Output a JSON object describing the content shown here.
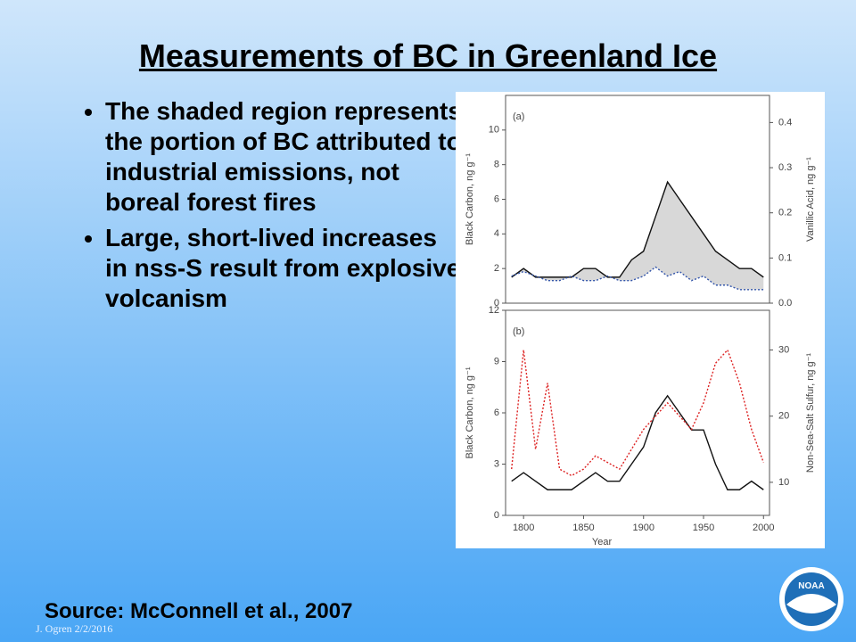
{
  "slide": {
    "title": "Measurements of BC in Greenland Ice",
    "bullets": [
      "The shaded region represents the portion of BC attributed to industrial emissions, not boreal forest fires",
      "Large, short-lived increases in nss-S result from explosive volcanism"
    ],
    "source": "Source:  McConnell et al., 2007",
    "footer": "J. Ogren  2/2/2016",
    "logo": "NOAA"
  },
  "chart_data": [
    {
      "type": "line",
      "panel_label": "(a)",
      "ylabel": "Black Carbon, ng g⁻¹",
      "y2label": "Vanillic Acid, ng g⁻¹",
      "x": [
        1790,
        1800,
        1810,
        1820,
        1830,
        1840,
        1850,
        1860,
        1870,
        1880,
        1890,
        1900,
        1910,
        1920,
        1930,
        1940,
        1950,
        1960,
        1970,
        1980,
        1990,
        2000
      ],
      "xlim": [
        1785,
        2005
      ],
      "ylim": [
        0,
        12
      ],
      "yticks": [
        0,
        2,
        4,
        6,
        8,
        10
      ],
      "y2lim": [
        0,
        0.46
      ],
      "y2ticks": [
        {
          "value": 0,
          "label": "0.0"
        },
        {
          "value": 0.1,
          "label": "0.1"
        },
        {
          "value": 0.2,
          "label": "0.2"
        },
        {
          "value": 0.3,
          "label": "0.3"
        },
        {
          "value": 0.4,
          "label": "0.4"
        }
      ],
      "shaded": true,
      "series": [
        {
          "color": "#111111",
          "values": [
            1.5,
            2,
            1.5,
            1.5,
            1.5,
            1.5,
            2,
            2,
            1.5,
            1.5,
            2.5,
            3,
            5,
            7,
            6,
            5,
            4,
            3,
            2.5,
            2,
            2,
            1.5
          ]
        },
        {
          "color": "#3355aa",
          "axis": "y2",
          "dashed": true,
          "values": [
            0.06,
            0.07,
            0.06,
            0.05,
            0.05,
            0.06,
            0.05,
            0.05,
            0.06,
            0.05,
            0.05,
            0.06,
            0.08,
            0.06,
            0.07,
            0.05,
            0.06,
            0.04,
            0.04,
            0.03,
            0.03,
            0.03
          ]
        }
      ]
    },
    {
      "type": "line",
      "panel_label": "(b)",
      "xlabel": "Year",
      "ylabel": "Black Carbon, ng g⁻¹",
      "y2label": "Non-Sea-Salt Sulfur, ng g⁻¹",
      "x": [
        1790,
        1800,
        1810,
        1820,
        1830,
        1840,
        1850,
        1860,
        1870,
        1880,
        1890,
        1900,
        1910,
        1920,
        1930,
        1940,
        1950,
        1960,
        1970,
        1980,
        1990,
        2000
      ],
      "xlim": [
        1785,
        2005
      ],
      "xticks": [
        1800,
        1850,
        1900,
        1950,
        2000
      ],
      "ylim": [
        0,
        12
      ],
      "yticks": [
        0,
        3,
        6,
        9,
        12
      ],
      "y2lim": [
        5,
        36
      ],
      "y2ticks": [
        10,
        20,
        30
      ],
      "series": [
        {
          "color": "#111111",
          "values": [
            2,
            2.5,
            2,
            1.5,
            1.5,
            1.5,
            2,
            2.5,
            2,
            2,
            3,
            4,
            6,
            7,
            6,
            5,
            5,
            3,
            1.5,
            1.5,
            2,
            1.5
          ]
        },
        {
          "color": "#dd2222",
          "axis": "y2",
          "dashed": true,
          "values": [
            12,
            30,
            15,
            25,
            12,
            11,
            12,
            14,
            13,
            12,
            15,
            18,
            20,
            22,
            20,
            18,
            22,
            28,
            30,
            25,
            18,
            13
          ]
        }
      ]
    }
  ]
}
